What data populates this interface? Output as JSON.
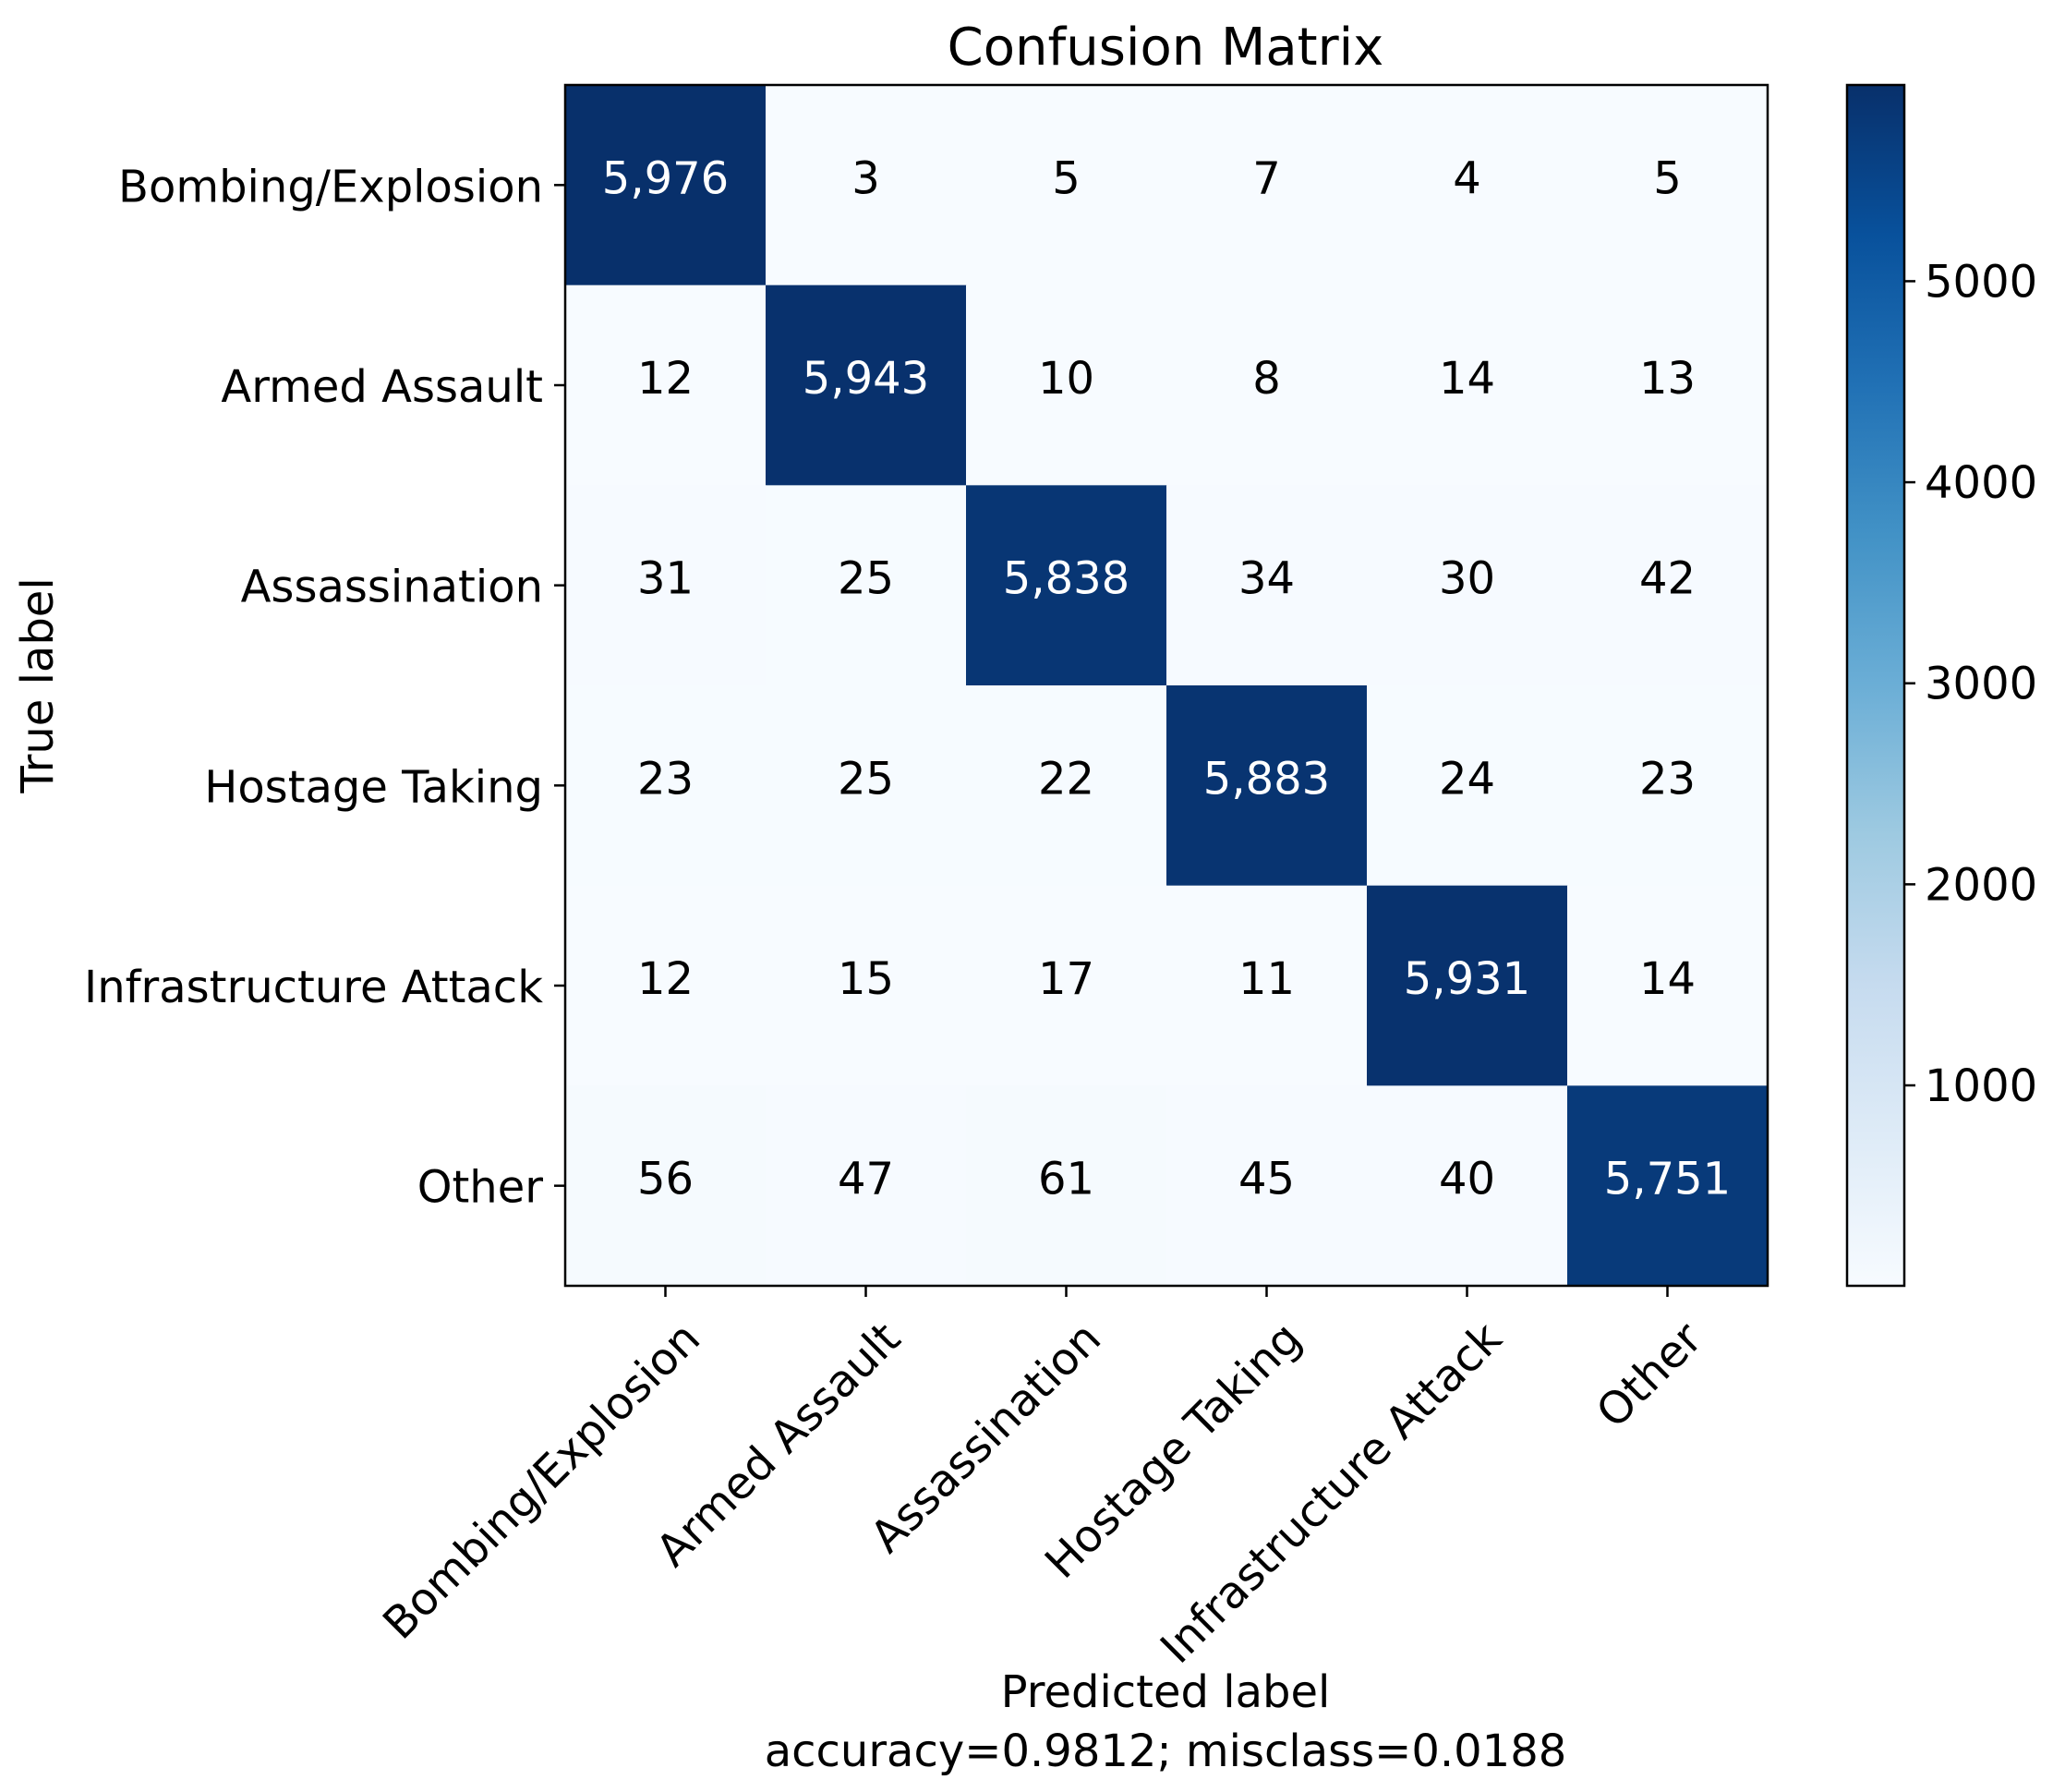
{
  "chart_data": {
    "type": "heatmap",
    "title": "Confusion Matrix",
    "xlabel": "Predicted label",
    "xlabel_note": "accuracy=0.9812; misclass=0.0188",
    "ylabel": "True label",
    "rows": [
      "Bombing/Explosion",
      "Armed Assault",
      "Assassination",
      "Hostage Taking",
      "Infrastructure Attack",
      "Other"
    ],
    "cols": [
      "Bombing/Explosion",
      "Armed Assault",
      "Assassination",
      "Hostage Taking",
      "Infrastructure Attack",
      "Other"
    ],
    "values": [
      [
        5976,
        3,
        5,
        7,
        4,
        5
      ],
      [
        12,
        5943,
        10,
        8,
        14,
        13
      ],
      [
        31,
        25,
        5838,
        34,
        30,
        42
      ],
      [
        23,
        25,
        22,
        5883,
        24,
        23
      ],
      [
        12,
        15,
        17,
        11,
        5931,
        14
      ],
      [
        56,
        47,
        61,
        45,
        40,
        5751
      ]
    ],
    "value_labels": [
      [
        "5,976",
        "3",
        "5",
        "7",
        "4",
        "5"
      ],
      [
        "12",
        "5,943",
        "10",
        "8",
        "14",
        "13"
      ],
      [
        "31",
        "25",
        "5,838",
        "34",
        "30",
        "42"
      ],
      [
        "23",
        "25",
        "22",
        "5,883",
        "24",
        "23"
      ],
      [
        "12",
        "15",
        "17",
        "11",
        "5,931",
        "14"
      ],
      [
        "56",
        "47",
        "61",
        "45",
        "40",
        "5,751"
      ]
    ],
    "colormap": "Blues",
    "color_low": "#f7fbff",
    "color_high": "#08306b",
    "colorbar": {
      "ticks": [
        1000,
        2000,
        3000,
        4000,
        5000
      ],
      "tick_labels": [
        "1000",
        "2000",
        "3000",
        "4000",
        "5000"
      ],
      "range": [
        3,
        5976
      ]
    },
    "grid": false
  }
}
